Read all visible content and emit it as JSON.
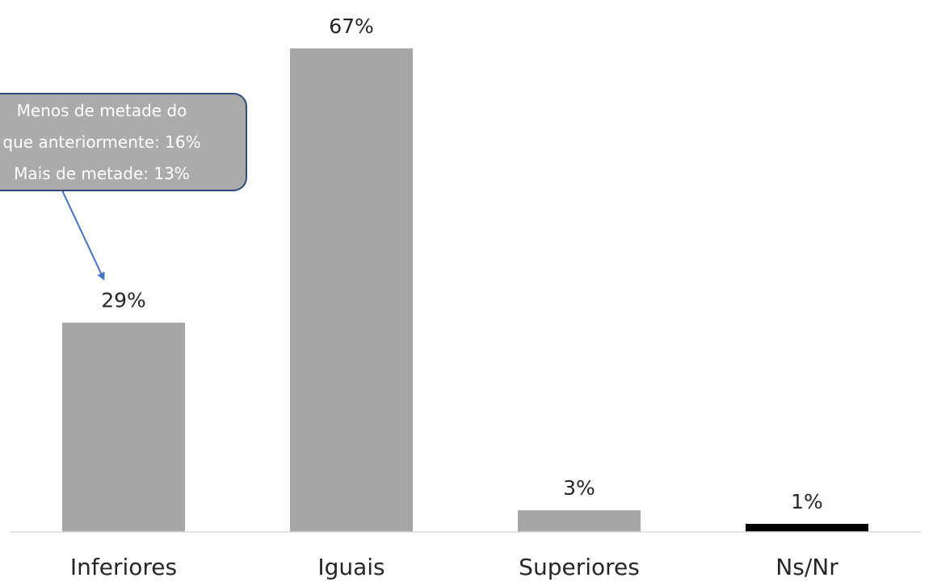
{
  "chart_data": {
    "type": "bar",
    "categories": [
      "Inferiores",
      "Iguais",
      "Superiores",
      "Ns/Nr"
    ],
    "values": [
      29,
      67,
      3,
      1
    ],
    "data_labels": [
      "29%",
      "67%",
      "3%",
      "1%"
    ],
    "ylim": [
      0,
      67
    ],
    "grid": false,
    "legend": "none",
    "colors": {
      "bar": "#A6A6A6",
      "highlight_bar": "#000000",
      "axis": "#D9D9D9",
      "text": "#262626",
      "callout_fill": "#ABABAB",
      "callout_border": "#2F4B7C",
      "arrow": "#4472C4"
    },
    "highlight_category": "Ns/Nr",
    "annotation": {
      "target_category": "Inferiores",
      "lines": [
        "Menos de metade do",
        "que anteriormente: 16%",
        "Mais de metade: 13%"
      ]
    }
  }
}
